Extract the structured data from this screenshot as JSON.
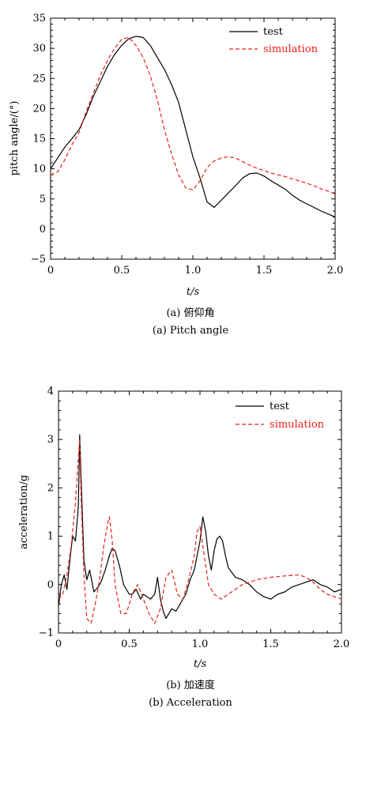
{
  "chart_data": [
    {
      "type": "line",
      "xlabel": "t/s",
      "ylabel": "pitch angle/(°)",
      "xlim": [
        0,
        2.0
      ],
      "ylim": [
        -5,
        35
      ],
      "xticks": [
        "0",
        "0.5",
        "1.0",
        "1.5",
        "2.0"
      ],
      "yticks": [
        "−5",
        "0",
        "5",
        "10",
        "15",
        "20",
        "25",
        "30",
        "35"
      ],
      "legend_position": "top-right",
      "caption_cn": "(a) 俯仰角",
      "caption_en": "(a) Pitch angle",
      "series": [
        {
          "name": "test",
          "color": "#000000",
          "style": "solid",
          "x": [
            0,
            0.05,
            0.1,
            0.15,
            0.2,
            0.25,
            0.3,
            0.35,
            0.4,
            0.45,
            0.5,
            0.55,
            0.6,
            0.65,
            0.7,
            0.75,
            0.8,
            0.85,
            0.9,
            0.95,
            1.0,
            1.05,
            1.1,
            1.15,
            1.2,
            1.25,
            1.3,
            1.35,
            1.4,
            1.45,
            1.5,
            1.55,
            1.6,
            1.65,
            1.7,
            1.75,
            1.8,
            1.85,
            1.9,
            1.95,
            2.0
          ],
          "y": [
            10,
            11.8,
            13.6,
            15,
            16.5,
            19,
            22,
            24.5,
            27,
            29,
            30.5,
            31.6,
            32,
            31.8,
            30.5,
            28.5,
            26.5,
            24,
            21,
            16.5,
            12,
            8.5,
            4.5,
            3.6,
            4.8,
            6,
            7.2,
            8.5,
            9.2,
            9.3,
            8.8,
            8,
            7.3,
            6.6,
            5.6,
            4.8,
            4.2,
            3.6,
            3.0,
            2.5,
            2.0
          ]
        },
        {
          "name": "simulation",
          "color": "#e8211b",
          "style": "dashed",
          "x": [
            0,
            0.05,
            0.1,
            0.15,
            0.2,
            0.25,
            0.3,
            0.35,
            0.4,
            0.45,
            0.5,
            0.55,
            0.6,
            0.65,
            0.7,
            0.75,
            0.8,
            0.85,
            0.9,
            0.95,
            1.0,
            1.05,
            1.1,
            1.15,
            1.2,
            1.25,
            1.3,
            1.35,
            1.4,
            1.45,
            1.5,
            1.55,
            1.6,
            1.65,
            1.7,
            1.75,
            1.8,
            1.85,
            1.9,
            1.95,
            2.0
          ],
          "y": [
            9,
            9.5,
            11.5,
            14,
            16,
            19.5,
            22.5,
            25.5,
            28,
            30,
            31.5,
            31.8,
            30.5,
            28.5,
            25.5,
            21.5,
            16.5,
            12.5,
            9,
            6.8,
            6.5,
            8,
            10.2,
            11.3,
            11.8,
            12,
            11.8,
            11.2,
            10.6,
            10.1,
            9.7,
            9.3,
            9,
            8.7,
            8.3,
            8.0,
            7.6,
            7.2,
            6.7,
            6.3,
            5.8
          ]
        }
      ]
    },
    {
      "type": "line",
      "xlabel": "t/s",
      "ylabel": "acceleration/g",
      "xlim": [
        0,
        2.0
      ],
      "ylim": [
        -1,
        4
      ],
      "xticks": [
        "0",
        "0.5",
        "1.0",
        "1.5",
        "2.0"
      ],
      "yticks": [
        "−1",
        "0",
        "1",
        "2",
        "3",
        "4"
      ],
      "legend_position": "top-right",
      "caption_cn": "(b) 加速度",
      "caption_en": "(b) Acceleration",
      "series": [
        {
          "name": "test",
          "color": "#000000",
          "style": "solid",
          "x": [
            0,
            0.02,
            0.04,
            0.06,
            0.08,
            0.1,
            0.12,
            0.14,
            0.15,
            0.16,
            0.18,
            0.2,
            0.22,
            0.25,
            0.28,
            0.3,
            0.33,
            0.36,
            0.38,
            0.4,
            0.43,
            0.46,
            0.5,
            0.52,
            0.55,
            0.58,
            0.6,
            0.65,
            0.68,
            0.7,
            0.72,
            0.74,
            0.76,
            0.8,
            0.83,
            0.86,
            0.9,
            0.93,
            0.96,
            1.0,
            1.02,
            1.04,
            1.06,
            1.08,
            1.1,
            1.12,
            1.14,
            1.16,
            1.18,
            1.2,
            1.25,
            1.3,
            1.35,
            1.4,
            1.45,
            1.5,
            1.55,
            1.6,
            1.65,
            1.7,
            1.75,
            1.8,
            1.85,
            1.9,
            1.95,
            2.0
          ],
          "y": [
            -0.45,
            0.0,
            0.2,
            -0.1,
            0.5,
            1.0,
            0.9,
            1.6,
            3.1,
            2.2,
            0.5,
            0.1,
            0.3,
            -0.15,
            -0.05,
            0.05,
            0.3,
            0.6,
            0.75,
            0.7,
            0.4,
            0.0,
            -0.2,
            -0.2,
            -0.1,
            -0.3,
            -0.2,
            -0.3,
            -0.2,
            0.15,
            -0.3,
            -0.55,
            -0.7,
            -0.5,
            -0.55,
            -0.4,
            -0.2,
            0.1,
            0.3,
            0.9,
            1.4,
            1.1,
            0.6,
            0.3,
            0.7,
            0.95,
            1.0,
            0.9,
            0.6,
            0.35,
            0.15,
            0.1,
            0.0,
            -0.15,
            -0.25,
            -0.3,
            -0.2,
            -0.15,
            -0.05,
            0.0,
            0.05,
            0.1,
            0.0,
            -0.05,
            -0.15,
            -0.1
          ]
        },
        {
          "name": "simulation",
          "color": "#e8211b",
          "style": "dashed",
          "x": [
            0,
            0.03,
            0.06,
            0.09,
            0.12,
            0.14,
            0.15,
            0.16,
            0.18,
            0.2,
            0.23,
            0.26,
            0.29,
            0.32,
            0.35,
            0.36,
            0.38,
            0.4,
            0.44,
            0.48,
            0.52,
            0.56,
            0.6,
            0.64,
            0.68,
            0.72,
            0.76,
            0.8,
            0.84,
            0.88,
            0.92,
            0.96,
            0.98,
            1.0,
            1.03,
            1.06,
            1.1,
            1.15,
            1.2,
            1.3,
            1.4,
            1.5,
            1.6,
            1.7,
            1.75,
            1.8,
            1.85,
            1.9,
            1.95,
            2.0
          ],
          "y": [
            -0.3,
            -0.2,
            0.2,
            0.8,
            1.7,
            2.6,
            3.0,
            1.8,
            0.2,
            -0.7,
            -0.8,
            -0.4,
            0.1,
            0.8,
            1.3,
            1.4,
            0.9,
            0.0,
            -0.6,
            -0.6,
            -0.2,
            0.0,
            -0.3,
            -0.6,
            -0.8,
            -0.5,
            0.15,
            0.3,
            -0.2,
            -0.3,
            0.1,
            0.6,
            1.1,
            1.2,
            0.6,
            0.0,
            -0.2,
            -0.3,
            -0.2,
            0.0,
            0.1,
            0.15,
            0.18,
            0.2,
            0.15,
            0.05,
            -0.1,
            -0.2,
            -0.25,
            -0.3
          ]
        }
      ]
    }
  ]
}
